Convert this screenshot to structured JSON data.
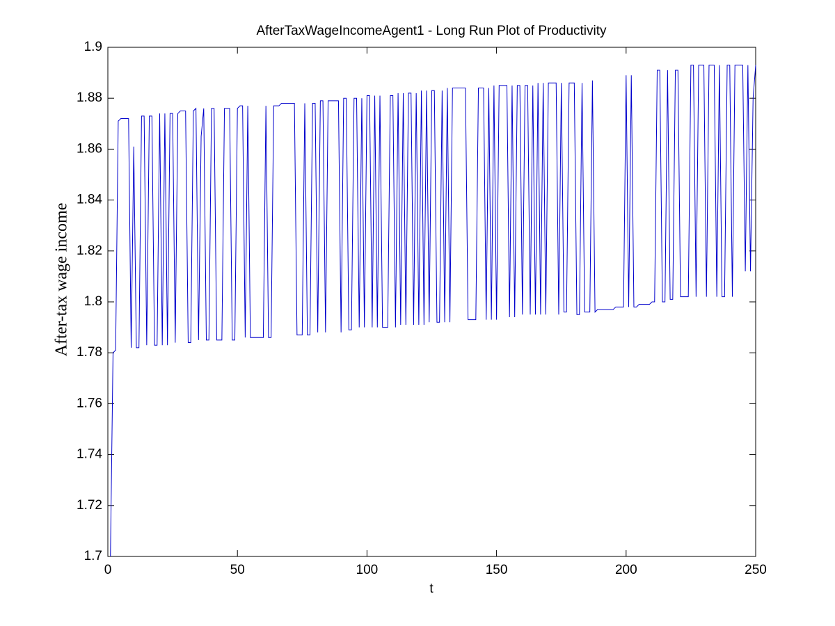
{
  "chart_data": {
    "type": "line",
    "title": "AfterTaxWageIncomeAgent1 - Long Run Plot of Productivity",
    "x_label": "t",
    "y_label": "After-tax wage income",
    "color": "#0000cc",
    "xlim": [
      0,
      250
    ],
    "xticks": [
      0,
      50,
      100,
      150,
      200,
      250
    ],
    "ylim": [
      1.7,
      1.9
    ],
    "yticks": [
      1.7,
      1.72,
      1.74,
      1.76,
      1.78,
      1.8,
      1.82,
      1.84,
      1.86,
      1.88,
      1.9
    ],
    "x": [
      1,
      2,
      3,
      4,
      5,
      6,
      7,
      8,
      9,
      10,
      11,
      12,
      13,
      14,
      15,
      16,
      17,
      18,
      19,
      20,
      21,
      22,
      23,
      24,
      25,
      26,
      27,
      28,
      29,
      30,
      31,
      32,
      33,
      34,
      35,
      36,
      37,
      38,
      39,
      40,
      41,
      42,
      43,
      44,
      45,
      46,
      47,
      48,
      49,
      50,
      51,
      52,
      53,
      54,
      55,
      56,
      57,
      58,
      59,
      60,
      61,
      62,
      63,
      64,
      65,
      66,
      67,
      68,
      69,
      70,
      71,
      72,
      73,
      74,
      75,
      76,
      77,
      78,
      79,
      80,
      81,
      82,
      83,
      84,
      85,
      86,
      87,
      88,
      89,
      90,
      91,
      92,
      93,
      94,
      95,
      96,
      97,
      98,
      99,
      100,
      101,
      102,
      103,
      104,
      105,
      106,
      107,
      108,
      109,
      110,
      111,
      112,
      113,
      114,
      115,
      116,
      117,
      118,
      119,
      120,
      121,
      122,
      123,
      124,
      125,
      126,
      127,
      128,
      129,
      130,
      131,
      132,
      133,
      134,
      135,
      136,
      137,
      138,
      139,
      140,
      141,
      142,
      143,
      144,
      145,
      146,
      147,
      148,
      149,
      150,
      151,
      152,
      153,
      154,
      155,
      156,
      157,
      158,
      159,
      160,
      161,
      162,
      163,
      164,
      165,
      166,
      167,
      168,
      169,
      170,
      171,
      172,
      173,
      174,
      175,
      176,
      177,
      178,
      179,
      180,
      181,
      182,
      183,
      184,
      185,
      186,
      187,
      188,
      189,
      190,
      191,
      192,
      193,
      194,
      195,
      196,
      197,
      198,
      199,
      200,
      201,
      202,
      203,
      204,
      205,
      206,
      207,
      208,
      209,
      210,
      211,
      212,
      213,
      214,
      215,
      216,
      217,
      218,
      219,
      220,
      221,
      222,
      223,
      224,
      225,
      226,
      227,
      228,
      229,
      230,
      231,
      232,
      233,
      234,
      235,
      236,
      237,
      238,
      239,
      240,
      241,
      242,
      243,
      244,
      245,
      246,
      247,
      248,
      249,
      250
    ],
    "values": [
      1.7,
      1.78,
      1.781,
      1.871,
      1.872,
      1.872,
      1.872,
      1.872,
      1.782,
      1.861,
      1.782,
      1.782,
      1.873,
      1.873,
      1.783,
      1.873,
      1.873,
      1.783,
      1.783,
      1.874,
      1.783,
      1.874,
      1.783,
      1.874,
      1.874,
      1.784,
      1.874,
      1.875,
      1.875,
      1.875,
      1.784,
      1.784,
      1.875,
      1.876,
      1.785,
      1.865,
      1.876,
      1.785,
      1.785,
      1.876,
      1.876,
      1.785,
      1.785,
      1.785,
      1.876,
      1.876,
      1.876,
      1.785,
      1.785,
      1.876,
      1.877,
      1.877,
      1.786,
      1.877,
      1.786,
      1.786,
      1.786,
      1.786,
      1.786,
      1.786,
      1.877,
      1.786,
      1.786,
      1.877,
      1.877,
      1.877,
      1.878,
      1.878,
      1.878,
      1.878,
      1.878,
      1.878,
      1.787,
      1.787,
      1.787,
      1.878,
      1.787,
      1.787,
      1.878,
      1.878,
      1.788,
      1.879,
      1.879,
      1.788,
      1.879,
      1.879,
      1.879,
      1.879,
      1.879,
      1.788,
      1.88,
      1.88,
      1.789,
      1.789,
      1.88,
      1.88,
      1.79,
      1.88,
      1.79,
      1.881,
      1.881,
      1.79,
      1.881,
      1.79,
      1.881,
      1.79,
      1.79,
      1.79,
      1.881,
      1.881,
      1.79,
      1.882,
      1.791,
      1.882,
      1.791,
      1.882,
      1.882,
      1.791,
      1.882,
      1.791,
      1.883,
      1.791,
      1.883,
      1.792,
      1.883,
      1.883,
      1.792,
      1.792,
      1.883,
      1.792,
      1.884,
      1.792,
      1.884,
      1.884,
      1.884,
      1.884,
      1.884,
      1.884,
      1.793,
      1.793,
      1.793,
      1.793,
      1.884,
      1.884,
      1.884,
      1.793,
      1.884,
      1.793,
      1.885,
      1.793,
      1.885,
      1.885,
      1.885,
      1.885,
      1.794,
      1.885,
      1.794,
      1.885,
      1.885,
      1.795,
      1.885,
      1.885,
      1.795,
      1.885,
      1.795,
      1.886,
      1.795,
      1.886,
      1.795,
      1.886,
      1.886,
      1.886,
      1.886,
      1.795,
      1.886,
      1.796,
      1.796,
      1.886,
      1.886,
      1.886,
      1.795,
      1.795,
      1.886,
      1.796,
      1.796,
      1.796,
      1.887,
      1.796,
      1.797,
      1.797,
      1.797,
      1.797,
      1.797,
      1.797,
      1.797,
      1.798,
      1.798,
      1.798,
      1.798,
      1.889,
      1.798,
      1.889,
      1.798,
      1.798,
      1.799,
      1.799,
      1.799,
      1.799,
      1.799,
      1.8,
      1.8,
      1.891,
      1.891,
      1.8,
      1.8,
      1.891,
      1.801,
      1.801,
      1.891,
      1.891,
      1.802,
      1.802,
      1.802,
      1.802,
      1.893,
      1.893,
      1.802,
      1.893,
      1.893,
      1.893,
      1.802,
      1.893,
      1.893,
      1.893,
      1.802,
      1.893,
      1.802,
      1.802,
      1.893,
      1.893,
      1.802,
      1.893,
      1.893,
      1.893,
      1.893,
      1.812,
      1.893,
      1.812,
      1.88,
      1.893
    ]
  }
}
